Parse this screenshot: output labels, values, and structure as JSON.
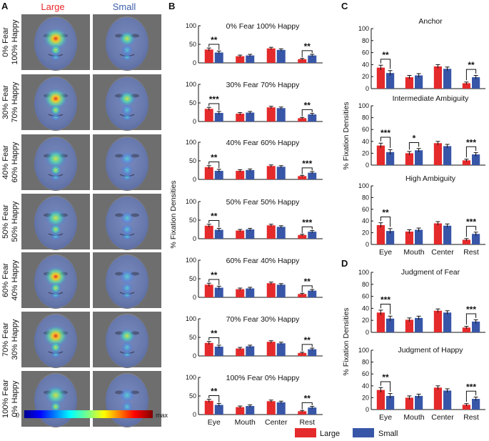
{
  "panels": {
    "a": "A",
    "b": "B",
    "c": "C",
    "d": "D"
  },
  "panel_a": {
    "col_large": "Large",
    "col_small": "Small",
    "col_large_color": "#e8282b",
    "col_small_color": "#3b5eaa",
    "rows": [
      {
        "line1": "0% Fear",
        "line2": "100% Happy"
      },
      {
        "line1": "30% Fear",
        "line2": "70% Happy"
      },
      {
        "line1": "40% Fear",
        "line2": "60% Happy"
      },
      {
        "line1": "50% Fear",
        "line2": "50% Happy"
      },
      {
        "line1": "60% Fear",
        "line2": "40% Happy"
      },
      {
        "line1": "70% Fear",
        "line2": "30% Happy"
      },
      {
        "line1": "100% Fear",
        "line2": "0% Happy"
      }
    ],
    "colorbar": {
      "min_label": "0",
      "max_label": "max"
    }
  },
  "legend": {
    "large": "Large",
    "small": "Small",
    "large_color": "#e52a2c",
    "small_color": "#3856a8"
  },
  "chart_data": [
    {
      "panel": "B",
      "type": "bar",
      "ylabel": "% Fixation Densities",
      "categories": [
        "Eye",
        "Mouth",
        "Center",
        "Rest"
      ],
      "ylim": [
        0,
        100
      ],
      "yticks": [
        0,
        50,
        100
      ],
      "subplots": [
        {
          "title": "0% Fear 100% Happy",
          "large": [
            36,
            18,
            39,
            10
          ],
          "small": [
            28,
            20,
            35,
            20
          ],
          "large_err": [
            4,
            3,
            3,
            2
          ],
          "small_err": [
            4,
            3,
            3,
            3
          ],
          "sig": [
            "**",
            "",
            "",
            "**"
          ]
        },
        {
          "title": "30% Fear 70% Happy",
          "large": [
            34,
            21,
            38,
            9
          ],
          "small": [
            23,
            24,
            36,
            19
          ],
          "large_err": [
            4,
            3,
            3,
            2
          ],
          "small_err": [
            4,
            3,
            3,
            3
          ],
          "sig": [
            "***",
            "",
            "",
            "**"
          ]
        },
        {
          "title": "40% Fear 60% Happy",
          "large": [
            33,
            23,
            36,
            9
          ],
          "small": [
            23,
            25,
            34,
            18
          ],
          "large_err": [
            4,
            3,
            3,
            2
          ],
          "small_err": [
            4,
            3,
            3,
            3
          ],
          "sig": [
            "**",
            "",
            "",
            "***"
          ]
        },
        {
          "title": "50% Fear 50% Happy",
          "large": [
            35,
            22,
            36,
            10
          ],
          "small": [
            24,
            25,
            32,
            19
          ],
          "large_err": [
            4,
            3,
            3,
            2
          ],
          "small_err": [
            4,
            3,
            3,
            3
          ],
          "sig": [
            "**",
            "",
            "",
            "***"
          ]
        },
        {
          "title": "60% Fear 40% Happy",
          "large": [
            34,
            22,
            38,
            9
          ],
          "small": [
            26,
            24,
            34,
            18
          ],
          "large_err": [
            4,
            3,
            3,
            2
          ],
          "small_err": [
            4,
            3,
            3,
            3
          ],
          "sig": [
            "**",
            "",
            "",
            "**"
          ]
        },
        {
          "title": "70% Fear 30% Happy",
          "large": [
            35,
            20,
            38,
            8
          ],
          "small": [
            25,
            26,
            34,
            18
          ],
          "large_err": [
            4,
            3,
            3,
            2
          ],
          "small_err": [
            4,
            3,
            3,
            3
          ],
          "sig": [
            "**",
            "",
            "",
            "**"
          ]
        },
        {
          "title": "100% Fear 0% Happy",
          "large": [
            37,
            20,
            36,
            9
          ],
          "small": [
            26,
            23,
            33,
            19
          ],
          "large_err": [
            4,
            3,
            3,
            2
          ],
          "small_err": [
            4,
            3,
            3,
            3
          ],
          "sig": [
            "**",
            "",
            "",
            "**"
          ]
        }
      ]
    },
    {
      "panel": "C",
      "type": "bar",
      "ylabel": "% Fixation Densities",
      "categories": [
        "Eye",
        "Mouth",
        "Center",
        "Rest"
      ],
      "ylim": [
        0,
        100
      ],
      "yticks": [
        0,
        20,
        40,
        60,
        80,
        100
      ],
      "subplots": [
        {
          "title": "Anchor",
          "large": [
            35,
            19,
            37,
            9
          ],
          "small": [
            26,
            22,
            33,
            19
          ],
          "large_err": [
            4,
            3,
            3,
            2
          ],
          "small_err": [
            4,
            3,
            3,
            3
          ],
          "sig": [
            "**",
            "",
            "",
            "**"
          ]
        },
        {
          "title": "Intermediate Ambiguity",
          "large": [
            33,
            20,
            37,
            8
          ],
          "small": [
            22,
            25,
            32,
            18
          ],
          "large_err": [
            4,
            3,
            3,
            2
          ],
          "small_err": [
            4,
            3,
            3,
            3
          ],
          "sig": [
            "***",
            "*",
            "",
            "***"
          ]
        },
        {
          "title": "High Ambiguity",
          "large": [
            33,
            22,
            36,
            8
          ],
          "small": [
            23,
            25,
            32,
            18
          ],
          "large_err": [
            4,
            3,
            3,
            2
          ],
          "small_err": [
            4,
            3,
            3,
            3
          ],
          "sig": [
            "**",
            "",
            "",
            "***"
          ]
        }
      ]
    },
    {
      "panel": "D",
      "type": "bar",
      "ylabel": "% Fixation Densities",
      "categories": [
        "Eye",
        "Mouth",
        "Center",
        "Rest"
      ],
      "ylim": [
        0,
        100
      ],
      "yticks": [
        0,
        20,
        40,
        60,
        80,
        100
      ],
      "subplots": [
        {
          "title": "Judgment of Fear",
          "large": [
            33,
            21,
            36,
            8
          ],
          "small": [
            23,
            24,
            33,
            18
          ],
          "large_err": [
            4,
            3,
            3,
            2
          ],
          "small_err": [
            4,
            3,
            3,
            3
          ],
          "sig": [
            "***",
            "",
            "",
            "***"
          ]
        },
        {
          "title": "Judgment of Happy",
          "large": [
            33,
            20,
            37,
            8
          ],
          "small": [
            23,
            23,
            32,
            18
          ],
          "large_err": [
            4,
            3,
            3,
            2
          ],
          "small_err": [
            4,
            3,
            3,
            3
          ],
          "sig": [
            "**",
            "",
            "",
            "***"
          ]
        }
      ]
    }
  ]
}
